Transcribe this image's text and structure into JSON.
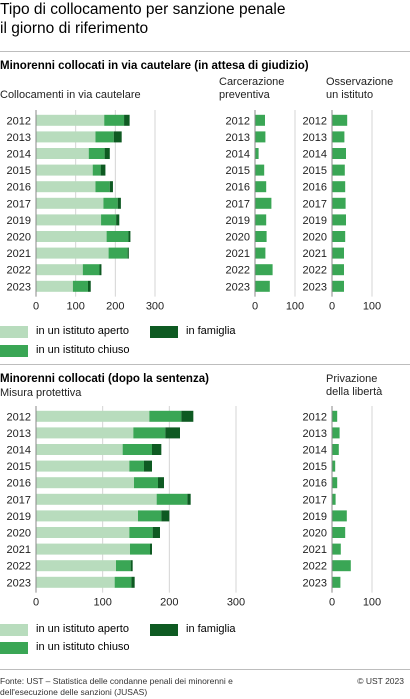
{
  "title_lines": [
    "Tipo di collocamento per sanzione penale",
    "il giorno di riferimento"
  ],
  "colors": {
    "aperto": "#b8dcbd",
    "chiuso": "#3aa655",
    "famiglia": "#0e5a22"
  },
  "sections": [
    {
      "title": "Minorenni collocati in via cautelare (in attesa di giudizio)"
    },
    {
      "title": "Minorenni collocati (dopo la sentenza)"
    }
  ],
  "legend": [
    {
      "key": "aperto",
      "label": "in un istituto aperto"
    },
    {
      "key": "famiglia",
      "label": "in famiglia"
    },
    {
      "key": "chiuso",
      "label": "in un istituto chiuso"
    }
  ],
  "chart_data": [
    {
      "type": "bar",
      "orientation": "horizontal",
      "stacked": true,
      "title": "Collocamenti in via cautelare",
      "categories": [
        "2012",
        "2013",
        "2014",
        "2015",
        "2016",
        "2017",
        "2019",
        "2020",
        "2021",
        "2022",
        "2023"
      ],
      "xlim": [
        0,
        300
      ],
      "xticks": [
        0,
        100,
        200,
        300
      ],
      "series": [
        {
          "name": "in un istituto aperto",
          "values": [
            172,
            150,
            133,
            143,
            150,
            170,
            164,
            178,
            183,
            118,
            93
          ]
        },
        {
          "name": "in un istituto chiuso",
          "values": [
            50,
            46,
            40,
            20,
            36,
            36,
            38,
            55,
            48,
            42,
            38
          ]
        },
        {
          "name": "in famiglia",
          "values": [
            14,
            20,
            13,
            12,
            8,
            8,
            8,
            5,
            3,
            5,
            7
          ]
        }
      ]
    },
    {
      "type": "bar",
      "orientation": "horizontal",
      "title_lines": [
        "Carcerazione",
        "preventiva"
      ],
      "categories": [
        "2012",
        "2013",
        "2014",
        "2015",
        "2016",
        "2017",
        "2019",
        "2020",
        "2021",
        "2022",
        "2023"
      ],
      "xlim": [
        0,
        100
      ],
      "xticks": [
        0,
        100
      ],
      "values": [
        25,
        26,
        9,
        23,
        28,
        41,
        28,
        29,
        26,
        44,
        37
      ]
    },
    {
      "type": "bar",
      "orientation": "horizontal",
      "title_lines": [
        "Osservazione",
        "un istituto"
      ],
      "categories": [
        "2012",
        "2013",
        "2014",
        "2015",
        "2016",
        "2017",
        "2019",
        "2020",
        "2021",
        "2022",
        "2023"
      ],
      "xlim": [
        0,
        100
      ],
      "xticks": [
        0,
        100
      ],
      "values": [
        38,
        31,
        35,
        32,
        33,
        34,
        35,
        33,
        30,
        30,
        30
      ]
    },
    {
      "type": "bar",
      "orientation": "horizontal",
      "stacked": true,
      "title": "Misura protettiva",
      "categories": [
        "2012",
        "2013",
        "2014",
        "2015",
        "2016",
        "2017",
        "2019",
        "2020",
        "2021",
        "2022",
        "2023"
      ],
      "xlim": [
        0,
        300
      ],
      "xticks": [
        0,
        100,
        200,
        300
      ],
      "series": [
        {
          "name": "in un istituto aperto",
          "values": [
            170,
            146,
            130,
            140,
            147,
            181,
            153,
            140,
            141,
            120,
            118
          ]
        },
        {
          "name": "in un istituto chiuso",
          "values": [
            48,
            48,
            44,
            22,
            36,
            46,
            35,
            35,
            30,
            22,
            25
          ]
        },
        {
          "name": "in famiglia",
          "values": [
            18,
            22,
            14,
            12,
            9,
            5,
            12,
            11,
            3,
            3,
            5
          ]
        }
      ]
    },
    {
      "type": "bar",
      "orientation": "horizontal",
      "title_lines": [
        "Privazione",
        "della libertà"
      ],
      "categories": [
        "2012",
        "2013",
        "2014",
        "2015",
        "2016",
        "2017",
        "2019",
        "2020",
        "2021",
        "2022",
        "2023"
      ],
      "xlim": [
        0,
        100
      ],
      "xticks": [
        0,
        100
      ],
      "values": [
        13,
        19,
        17,
        8,
        13,
        9,
        37,
        33,
        22,
        47,
        21
      ]
    }
  ],
  "footer_lines": [
    "Fonte: UST – Statistica delle condanne penali dei minorenni e",
    "dell'esecuzione delle sanzioni (JUSAS)"
  ],
  "copyright": "© UST 2023"
}
